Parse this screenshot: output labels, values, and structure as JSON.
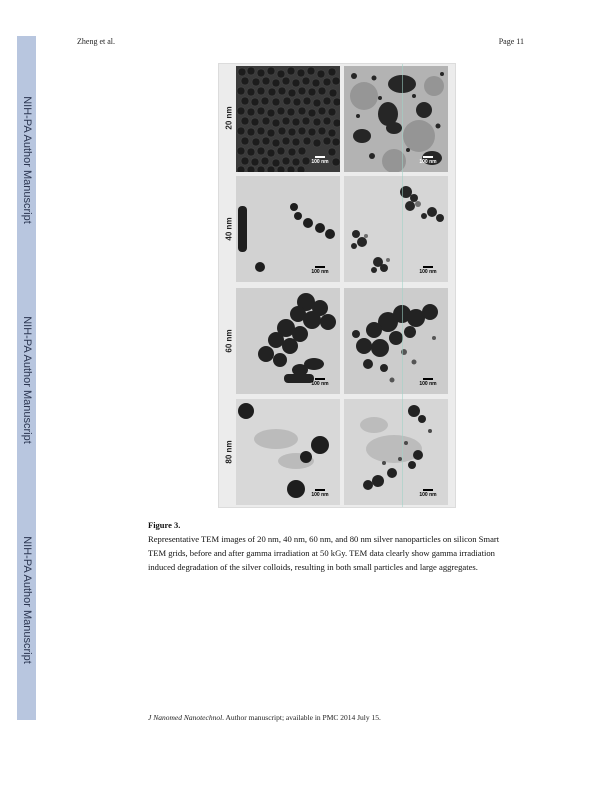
{
  "sidebar": {
    "label": "NIH-PA Author Manuscript",
    "color": "#b8c6df"
  },
  "header": {
    "left": "Zheng et al.",
    "right": "Page 11"
  },
  "figure": {
    "rows": [
      {
        "label": "20 nm",
        "scale_before": "100 nm",
        "scale_after": "100 nm"
      },
      {
        "label": "40 nm",
        "scale_before": "100 nm",
        "scale_after": "100 nm"
      },
      {
        "label": "60 nm",
        "scale_before": "100 nm",
        "scale_after": "100 nm"
      },
      {
        "label": "80 nm",
        "scale_before": "100 nm",
        "scale_after": "100 nm"
      }
    ]
  },
  "caption": {
    "title": "Figure 3.",
    "text": "Representative TEM images of 20 nm, 40 nm, 60 nm, and 80 nm silver nanoparticles on silicon Smart TEM grids, before and after gamma irradiation at 50 kGy. TEM data clearly show gamma irradiation induced degradation of the silver colloids, resulting in both small particles and large aggregates."
  },
  "footer": {
    "journal": "J Nanomed Nanotechnol",
    "rest": ". Author manuscript; available in PMC 2014 July 15."
  }
}
